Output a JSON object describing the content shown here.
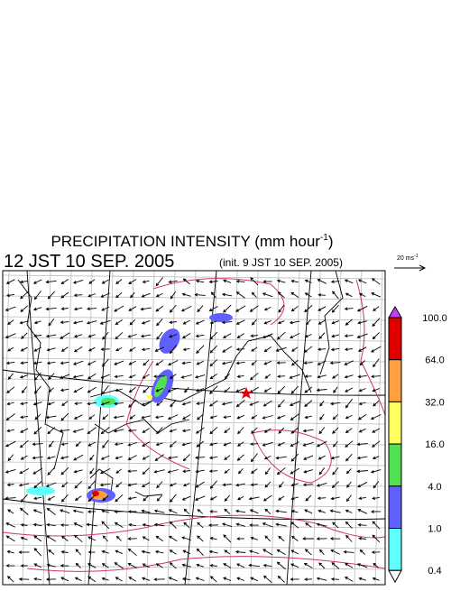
{
  "title": {
    "text": "PRECIPITATION INTENSITY (mm hour",
    "superscript": "-1",
    "close": ")"
  },
  "time": "12 JST 10 SEP. 2005",
  "init": "(init. 9 JST 10 SEP. 2005)",
  "vector_scale": {
    "label": "20 ms",
    "superscript": "-1"
  },
  "colorbar": {
    "labels": [
      "100.0",
      "64.0",
      "32.0",
      "16.0",
      "4.0",
      "1.0",
      "0.4"
    ],
    "colors": [
      "#e00000",
      "#ffa040",
      "#ffff60",
      "#50e050",
      "#6060ff",
      "#60ffff"
    ],
    "over_color": "#c040ff",
    "under_color": "#ffffff"
  }
}
